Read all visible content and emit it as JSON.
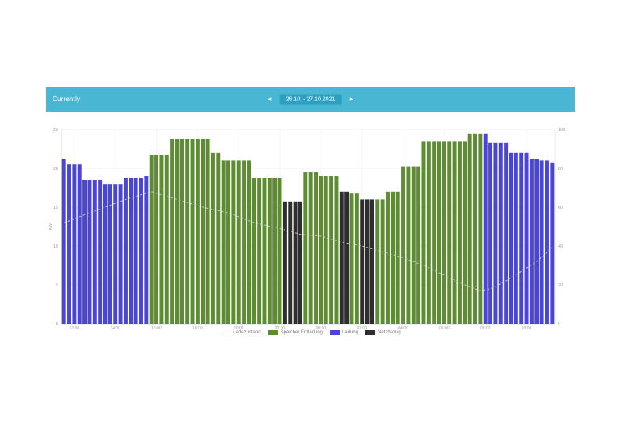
{
  "header": {
    "title": "Currently",
    "prev_icon": "◄",
    "next_icon": "►",
    "date_range": "26.10. - 27.10.2021"
  },
  "colors": {
    "page_bg": "#ffffff",
    "header_bg": "#49b6d3",
    "date_pill_bg": "#2d9fc0",
    "axis_text": "#9e9e9e",
    "grid_line": "#f0f0f0",
    "axis_line": "#d8d8d8"
  },
  "chart_data": {
    "type": "bar",
    "interval": "15min",
    "title": "",
    "left_axis": {
      "title": "kW",
      "ticks": [
        25,
        20,
        15,
        10,
        5,
        0
      ]
    },
    "right_axis": {
      "title": "%",
      "ticks": [
        100,
        80,
        60,
        40,
        20,
        0
      ],
      "range": [
        0,
        100
      ]
    },
    "x_tick_labels": [
      "12:00",
      "14:00",
      "16:00",
      "18:00",
      "20:00",
      "22:00",
      "00:00",
      "02:00",
      "04:00",
      "06:00",
      "08:00",
      "10:00"
    ],
    "x_tick_bar_indices": [
      2,
      10,
      18,
      26,
      34,
      42,
      50,
      58,
      66,
      74,
      82,
      90
    ],
    "series_colors": {
      "charge": "#4a46d2",
      "discharge": "#5e8c33",
      "grid": "#2e2e2e",
      "soc_line": "#cfcfcf"
    },
    "bars": {
      "values": [
        85,
        82,
        82,
        82,
        74,
        74,
        74,
        74,
        72,
        72,
        72,
        72,
        75,
        75,
        75,
        75,
        76,
        87,
        87,
        87,
        87,
        95,
        95,
        95,
        95,
        95,
        95,
        95,
        95,
        88,
        88,
        84,
        84,
        84,
        84,
        84,
        84,
        75,
        75,
        75,
        75,
        75,
        75,
        63,
        63,
        63,
        63,
        78,
        78,
        78,
        76,
        76,
        76,
        76,
        68,
        68,
        67,
        67,
        64,
        64,
        64,
        64,
        64,
        68,
        68,
        68,
        81,
        81,
        81,
        81,
        94,
        94,
        94,
        94,
        94,
        94,
        94,
        94,
        94,
        98,
        98,
        98,
        98,
        93,
        93,
        93,
        93,
        88,
        88,
        88,
        88,
        85,
        85,
        84,
        84,
        83
      ],
      "types": "bbbbbbbbbbbbbbbbbggggggggggggggggggggggggggkkkkgggggggkkggkkkgggggggggggggggggggggbbbbbbbbbbbbbb"
    },
    "soc_line": {
      "name": "Ladezustand",
      "points": [
        [
          0,
          52
        ],
        [
          4,
          56
        ],
        [
          8,
          60
        ],
        [
          12,
          64
        ],
        [
          17,
          68
        ],
        [
          22,
          64
        ],
        [
          27,
          60
        ],
        [
          32,
          57
        ],
        [
          37,
          52
        ],
        [
          42,
          49
        ],
        [
          46,
          46
        ],
        [
          50,
          45
        ],
        [
          54,
          42
        ],
        [
          58,
          40
        ],
        [
          62,
          37
        ],
        [
          66,
          34
        ],
        [
          70,
          30
        ],
        [
          74,
          25
        ],
        [
          78,
          20
        ],
        [
          81,
          17
        ],
        [
          83,
          18
        ],
        [
          86,
          22
        ],
        [
          89,
          27
        ],
        [
          92,
          32
        ],
        [
          95,
          39
        ]
      ]
    },
    "legend": [
      {
        "swatch": "line",
        "color": "#b5b5b5",
        "label": "Ladezustand"
      },
      {
        "swatch": "box",
        "color": "#5e8c33",
        "label": "Speicher Entladung"
      },
      {
        "swatch": "box",
        "color": "#4a46d2",
        "label": "Ladung"
      },
      {
        "swatch": "box",
        "color": "#2e2e2e",
        "label": "Netzbezug"
      }
    ]
  }
}
